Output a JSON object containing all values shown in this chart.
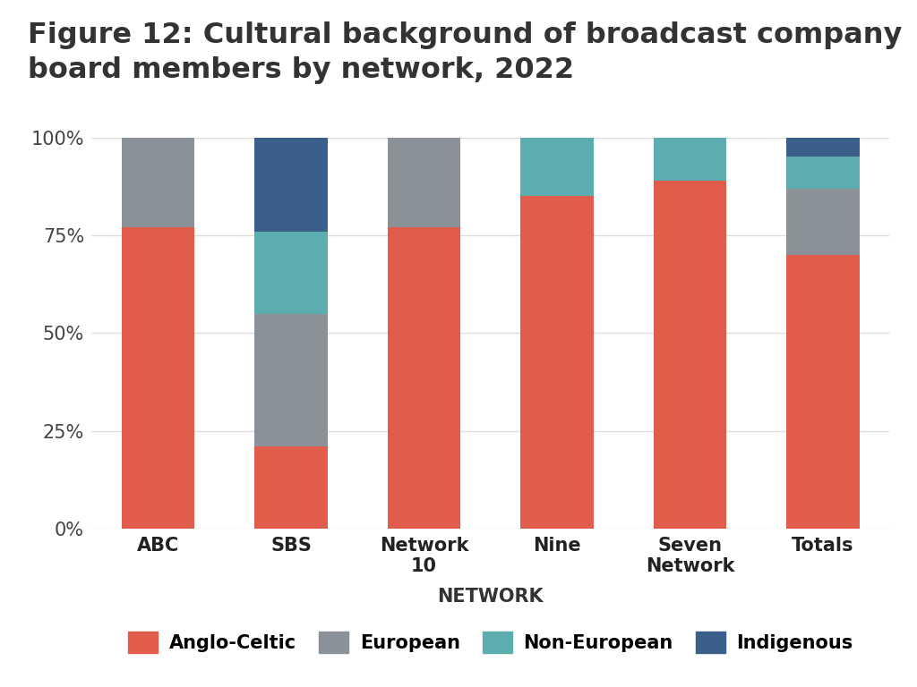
{
  "title": "Figure 12: Cultural background of broadcast company\nboard members by network, 2022",
  "categories": [
    "ABC",
    "SBS",
    "Network\n10",
    "Nine",
    "Seven\nNetwork",
    "Totals"
  ],
  "series": {
    "Anglo-Celtic": [
      77,
      21,
      77,
      85,
      89,
      70
    ],
    "European": [
      23,
      34,
      23,
      0,
      0,
      17
    ],
    "Non-European": [
      0,
      21,
      0,
      15,
      11,
      8
    ],
    "Indigenous": [
      0,
      24,
      0,
      0,
      0,
      5
    ]
  },
  "colors": {
    "Anglo-Celtic": "#E05C4B",
    "European": "#8A9199",
    "Non-European": "#5BADB0",
    "Indigenous": "#3A5F8A"
  },
  "xlabel": "NETWORK",
  "ylim": [
    0,
    100
  ],
  "yticks": [
    0,
    25,
    50,
    75,
    100
  ],
  "ytick_labels": [
    "0%",
    "25%",
    "50%",
    "75%",
    "100%"
  ],
  "title_fontsize": 23,
  "axis_label_fontsize": 15,
  "tick_fontsize": 15,
  "legend_fontsize": 15,
  "plot_bg_color": "#FFFFFF",
  "outer_bg_color": "#FFFFFF",
  "title_bg_color": "#FFFFFF",
  "separator_color": "#AAAAAA",
  "grid_color": "#DDDDDD",
  "bar_width": 0.55,
  "legend_order": [
    "Anglo-Celtic",
    "European",
    "Non-European",
    "Indigenous"
  ]
}
